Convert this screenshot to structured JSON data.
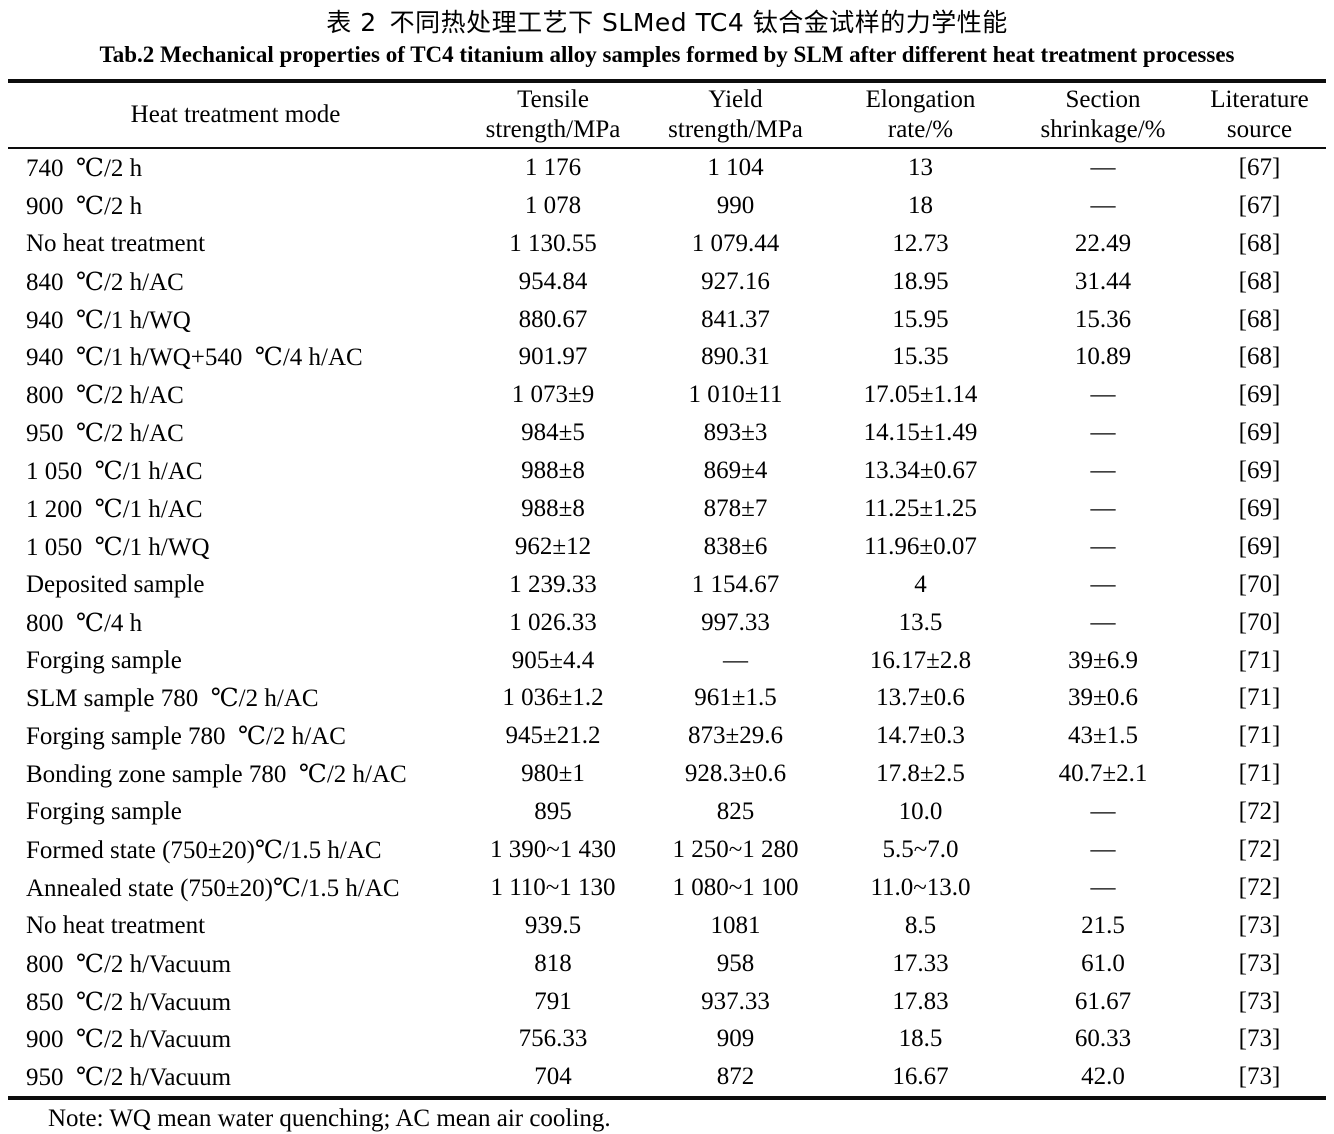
{
  "title_zh": "表 2 不同热处理工艺下 SLMed TC4 钛合金试样的力学性能",
  "title_en": "Tab.2 Mechanical properties of TC4 titanium alloy samples formed by SLM after different heat treatment processes",
  "rule_color": "#0d0d0d",
  "table": {
    "columns": [
      "Heat treatment mode",
      "Tensile\nstrength/MPa",
      "Yield\nstrength/MPa",
      "Elongation\nrate/%",
      "Section\nshrinkage/%",
      "Literature\nsource"
    ],
    "rows": [
      [
        "740 ℃/2 h",
        "1 176",
        "1 104",
        "13",
        "—",
        "[67]"
      ],
      [
        "900 ℃/2 h",
        "1 078",
        "990",
        "18",
        "—",
        "[67]"
      ],
      [
        "No heat treatment",
        "1 130.55",
        "1 079.44",
        "12.73",
        "22.49",
        "[68]"
      ],
      [
        "840 ℃/2 h/AC",
        "954.84",
        "927.16",
        "18.95",
        "31.44",
        "[68]"
      ],
      [
        "940 ℃/1 h/WQ",
        "880.67",
        "841.37",
        "15.95",
        "15.36",
        "[68]"
      ],
      [
        "940 ℃/1 h/WQ+540 ℃/4 h/AC",
        "901.97",
        "890.31",
        "15.35",
        "10.89",
        "[68]"
      ],
      [
        "800 ℃/2 h/AC",
        "1 073±9",
        "1 010±11",
        "17.05±1.14",
        "—",
        "[69]"
      ],
      [
        "950 ℃/2 h/AC",
        "984±5",
        "893±3",
        "14.15±1.49",
        "—",
        "[69]"
      ],
      [
        "1 050 ℃/1 h/AC",
        "988±8",
        "869±4",
        "13.34±0.67",
        "—",
        "[69]"
      ],
      [
        "1 200 ℃/1 h/AC",
        "988±8",
        "878±7",
        "11.25±1.25",
        "—",
        "[69]"
      ],
      [
        "1 050 ℃/1 h/WQ",
        "962±12",
        "838±6",
        "11.96±0.07",
        "—",
        "[69]"
      ],
      [
        "Deposited sample",
        "1 239.33",
        "1 154.67",
        "4",
        "—",
        "[70]"
      ],
      [
        "800 ℃/4 h",
        "1 026.33",
        "997.33",
        "13.5",
        "—",
        "[70]"
      ],
      [
        "Forging sample",
        "905±4.4",
        "—",
        "16.17±2.8",
        "39±6.9",
        "[71]"
      ],
      [
        "SLM sample 780 ℃/2 h/AC",
        "1 036±1.2",
        "961±1.5",
        "13.7±0.6",
        "39±0.6",
        "[71]"
      ],
      [
        "Forging sample 780 ℃/2 h/AC",
        "945±21.2",
        "873±29.6",
        "14.7±0.3",
        "43±1.5",
        "[71]"
      ],
      [
        "Bonding zone sample 780 ℃/2 h/AC",
        "980±1",
        "928.3±0.6",
        "17.8±2.5",
        "40.7±2.1",
        "[71]"
      ],
      [
        "Forging sample",
        "895",
        "825",
        "10.0",
        "—",
        "[72]"
      ],
      [
        "Formed state (750±20)℃/1.5 h/AC",
        "1 390~1 430",
        "1 250~1 280",
        "5.5~7.0",
        "—",
        "[72]"
      ],
      [
        "Annealed state (750±20)℃/1.5 h/AC",
        "1 110~1 130",
        "1 080~1 100",
        "11.0~13.0",
        "—",
        "[72]"
      ],
      [
        "No heat treatment",
        "939.5",
        "1081",
        "8.5",
        "21.5",
        "[73]"
      ],
      [
        "800 ℃/2 h/Vacuum",
        "818",
        "958",
        "17.33",
        "61.0",
        "[73]"
      ],
      [
        "850 ℃/2 h/Vacuum",
        "791",
        "937.33",
        "17.83",
        "61.67",
        "[73]"
      ],
      [
        "900 ℃/2 h/Vacuum",
        "756.33",
        "909",
        "18.5",
        "60.33",
        "[73]"
      ],
      [
        "950 ℃/2 h/Vacuum",
        "704",
        "872",
        "16.67",
        "42.0",
        "[73]"
      ]
    ]
  },
  "note": "Note: WQ mean water quenching; AC mean air cooling."
}
